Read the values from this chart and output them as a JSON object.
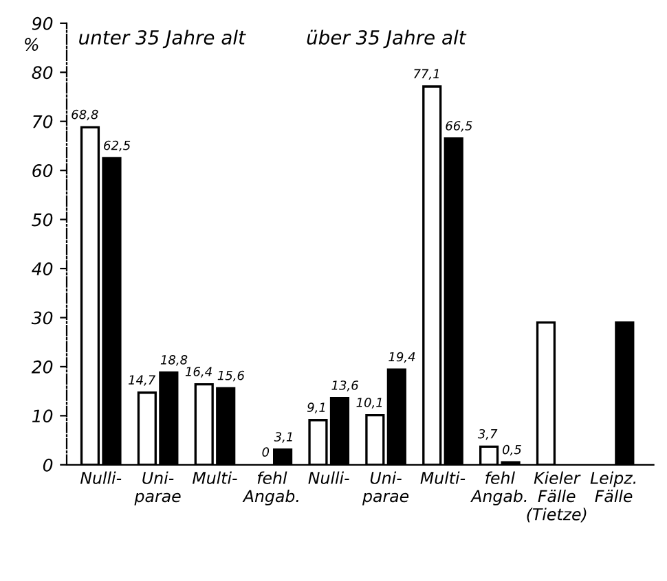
{
  "chart_data": {
    "type": "bar",
    "ylabel": "%",
    "categories": [
      "Nulli-",
      "Uni-\nparae",
      "Multi-",
      "fehl\nAngab.",
      "Nulli-",
      "Uni-\nparae",
      "Multi-",
      "fehl\nAngab.",
      "Kieler\nFälle\n(Tietze)",
      "Leipz.\nFälle"
    ],
    "series": [
      {
        "color": "#ffffff",
        "values": [
          68.8,
          14.7,
          16.4,
          0,
          9.1,
          10.1,
          77.1,
          3.7,
          29,
          null
        ],
        "value_labels": [
          "68,8",
          "14,7",
          "16,4",
          "0",
          "9,1",
          "10,1",
          "77,1",
          "3,7",
          null,
          null
        ]
      },
      {
        "color": "#000000",
        "values": [
          62.5,
          18.8,
          15.6,
          3.1,
          13.6,
          19.4,
          66.5,
          0.5,
          null,
          29
        ],
        "value_labels": [
          "62,5",
          "18,8",
          "15,6",
          "3,1",
          "13,6",
          "19,4",
          "66,5",
          "0,5",
          null,
          null
        ]
      }
    ],
    "annotations": [
      "unter 35 Jahre alt",
      "über 35 Jahre alt"
    ],
    "ylim": [
      0,
      90
    ],
    "yticks": [
      0,
      10,
      20,
      30,
      40,
      50,
      60,
      70,
      80,
      90
    ],
    "grid": false
  }
}
